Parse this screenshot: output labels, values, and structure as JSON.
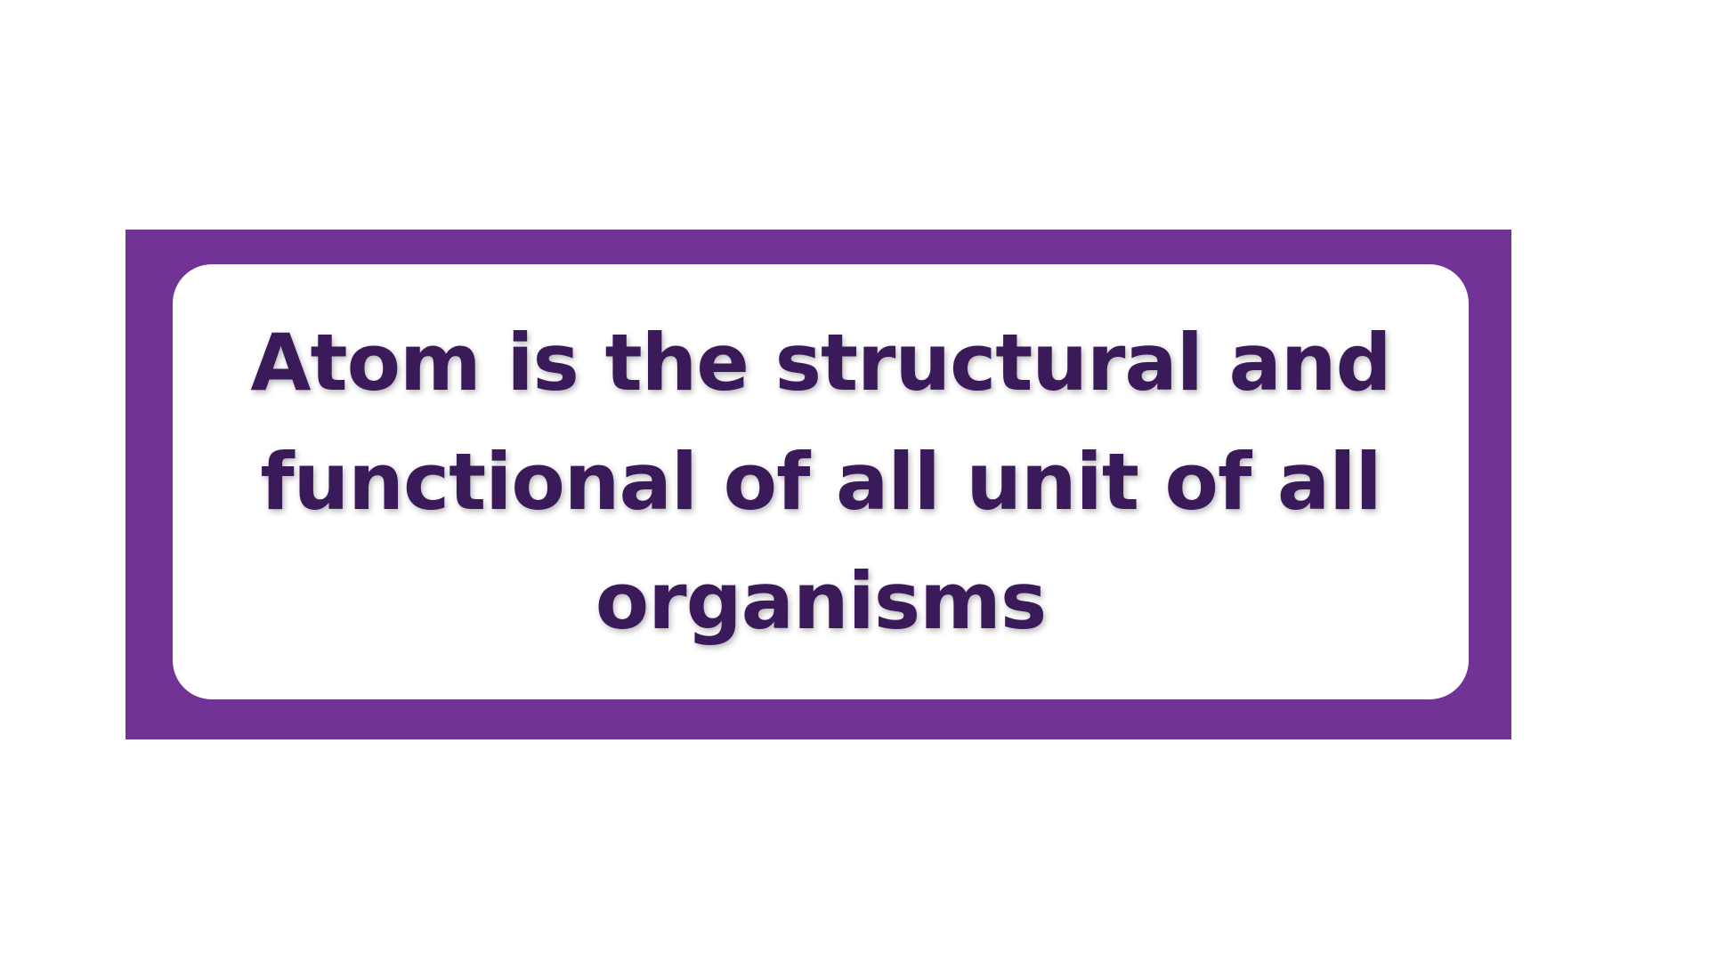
{
  "statement": {
    "text": "Atom is the structural and\nfunctional of all unit of all\norganisms"
  },
  "colors": {
    "frame": "#713396",
    "text": "#3b1a59",
    "background": "#ffffff",
    "card": "#ffffff"
  }
}
